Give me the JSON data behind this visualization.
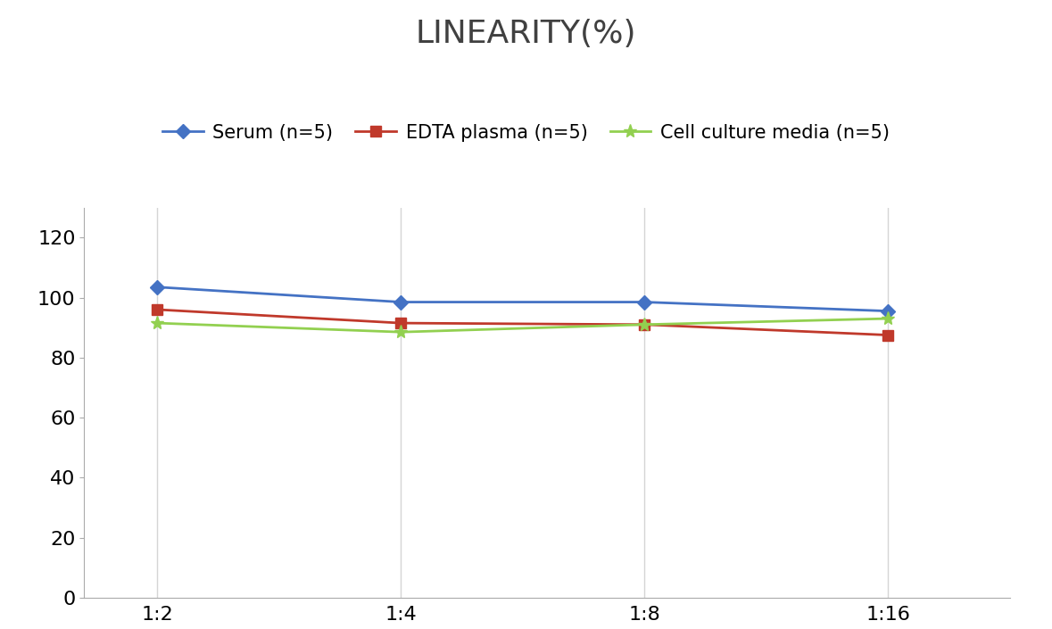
{
  "title": "LINEARITY(%)",
  "x_labels": [
    "1:2",
    "1:4",
    "1:8",
    "1:16"
  ],
  "x_positions": [
    0,
    1,
    2,
    3
  ],
  "series": [
    {
      "label": "Serum (n=5)",
      "values": [
        103.5,
        98.5,
        98.5,
        95.5
      ],
      "color": "#4472C4",
      "marker": "D",
      "marker_size": 8,
      "linewidth": 2.0
    },
    {
      "label": "EDTA plasma (n=5)",
      "values": [
        96.0,
        91.5,
        91.0,
        87.5
      ],
      "color": "#C0392B",
      "marker": "s",
      "marker_size": 8,
      "linewidth": 2.0
    },
    {
      "label": "Cell culture media (n=5)",
      "values": [
        91.5,
        88.5,
        91.0,
        93.0
      ],
      "color": "#92D050",
      "marker": "*",
      "marker_size": 11,
      "linewidth": 2.0
    }
  ],
  "ylim": [
    0,
    130
  ],
  "yticks": [
    0,
    20,
    40,
    60,
    80,
    100,
    120
  ],
  "background_color": "#ffffff",
  "grid_color": "#d5d5d5",
  "title_fontsize": 26,
  "title_color": "#404040",
  "tick_fontsize": 16,
  "legend_fontsize": 15
}
